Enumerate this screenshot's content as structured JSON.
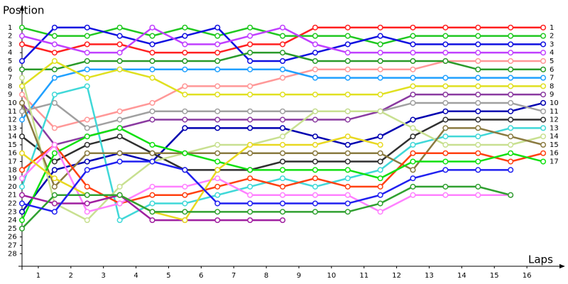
{
  "chart_data": {
    "type": "line",
    "y_label": "Position",
    "x_label": "Laps",
    "x": [
      0,
      1,
      2,
      3,
      4,
      5,
      6,
      7,
      8,
      9,
      10,
      11,
      12,
      13,
      14,
      15,
      16
    ],
    "xlim": [
      0,
      16.5
    ],
    "ylim": [
      29.5,
      0
    ],
    "xticks": [
      {
        "value": 0.5,
        "label": "1"
      },
      {
        "value": 1.5,
        "label": "2"
      },
      {
        "value": 2.5,
        "label": "3"
      },
      {
        "value": 3.5,
        "label": "4"
      },
      {
        "value": 4.5,
        "label": "5"
      },
      {
        "value": 5.5,
        "label": "6"
      },
      {
        "value": 6.5,
        "label": "7"
      },
      {
        "value": 7.5,
        "label": "8"
      },
      {
        "value": 8.5,
        "label": "9"
      },
      {
        "value": 9.5,
        "label": "10"
      },
      {
        "value": 10.5,
        "label": "11"
      },
      {
        "value": 11.5,
        "label": "12"
      },
      {
        "value": 12.5,
        "label": "13"
      },
      {
        "value": 13.5,
        "label": "14"
      },
      {
        "value": 14.5,
        "label": "15"
      },
      {
        "value": 15.5,
        "label": "16"
      }
    ],
    "yticks": [
      1,
      2,
      3,
      4,
      5,
      6,
      7,
      8,
      9,
      10,
      11,
      12,
      13,
      14,
      15,
      16,
      17,
      18,
      19,
      20,
      21,
      22,
      23,
      24,
      25,
      26,
      27,
      28
    ],
    "series": [
      {
        "color": "#ff2020",
        "values": [
          3,
          4,
          3,
          3,
          4,
          4,
          4,
          3,
          3,
          1,
          1,
          1,
          1,
          1,
          1,
          1,
          1
        ]
      },
      {
        "color": "#20c820",
        "values": [
          1,
          2,
          2,
          1,
          2,
          1,
          2,
          1,
          2,
          2,
          2,
          3,
          2,
          2,
          2,
          2,
          2
        ]
      },
      {
        "color": "#1010e0",
        "values": [
          5,
          1,
          1,
          2,
          3,
          2,
          1,
          5,
          5,
          4,
          3,
          2,
          3,
          3,
          3,
          3,
          3
        ]
      },
      {
        "color": "#c040ff",
        "values": [
          2,
          3,
          4,
          4,
          1,
          3,
          3,
          2,
          1,
          3,
          4,
          4,
          4,
          4,
          4,
          4,
          4
        ]
      },
      {
        "color": "#ff9898",
        "values": [
          9,
          13,
          12,
          11,
          10,
          8,
          8,
          8,
          7,
          6,
          6,
          6,
          6,
          5,
          5,
          5,
          5
        ]
      },
      {
        "color": "#2a9a2a",
        "values": [
          6,
          6,
          5,
          5,
          5,
          5,
          5,
          4,
          4,
          5,
          5,
          5,
          5,
          5,
          6,
          6,
          6
        ]
      },
      {
        "color": "#20a0ff",
        "values": [
          12,
          7,
          6,
          6,
          6,
          6,
          6,
          6,
          6,
          7,
          7,
          7,
          7,
          7,
          7,
          7,
          7
        ]
      },
      {
        "color": "#e0e020",
        "values": [
          8,
          5,
          7,
          6,
          7,
          9,
          9,
          9,
          9,
          9,
          9,
          9,
          8,
          8,
          8,
          8,
          8
        ]
      },
      {
        "color": "#8a3aa0",
        "values": [
          10,
          15,
          14,
          13,
          12,
          12,
          12,
          12,
          12,
          12,
          12,
          11,
          9,
          9,
          9,
          9,
          9
        ]
      },
      {
        "color": "#0000b0",
        "values": [
          23,
          18,
          17,
          16,
          17,
          13,
          13,
          13,
          13,
          14,
          15,
          14,
          12,
          11,
          11,
          11,
          10
        ]
      },
      {
        "color": "#a0a0a0",
        "values": [
          11,
          10,
          13,
          12,
          11,
          11,
          11,
          11,
          11,
          11,
          11,
          11,
          10,
          10,
          10,
          10,
          11
        ]
      },
      {
        "color": "#303030",
        "values": [
          14,
          17,
          15,
          14,
          16,
          18,
          18,
          18,
          17,
          17,
          17,
          17,
          14,
          12,
          12,
          12,
          12
        ]
      },
      {
        "color": "#40d8d8",
        "values": [
          20,
          9,
          8,
          24,
          22,
          22,
          21,
          20,
          19,
          20,
          19,
          18,
          15,
          14,
          14,
          13,
          13
        ]
      },
      {
        "color": "#c8e090",
        "values": [
          7,
          22,
          24,
          20,
          17,
          16,
          15,
          15,
          14,
          11,
          11,
          11,
          13,
          15,
          15,
          15,
          14
        ]
      },
      {
        "color": "#8a7a40",
        "values": [
          10,
          20,
          16,
          16,
          16,
          16,
          16,
          16,
          16,
          16,
          16,
          16,
          18,
          13,
          13,
          14,
          15
        ]
      },
      {
        "color": "#ff4010",
        "values": [
          18,
          15,
          20,
          22,
          21,
          21,
          20,
          19,
          20,
          19,
          20,
          20,
          16,
          16,
          16,
          17,
          16
        ]
      },
      {
        "color": "#10e010",
        "values": [
          24,
          16,
          14,
          13,
          15,
          16,
          17,
          18,
          18,
          18,
          18,
          19,
          17,
          17,
          17,
          16,
          17
        ]
      },
      {
        "color": "#ff80ff",
        "values": [
          19,
          15,
          23,
          22,
          20,
          20,
          19,
          21,
          21,
          21,
          21,
          23,
          21,
          21,
          21,
          21,
          null
        ]
      },
      {
        "color": "#a020a0",
        "values": [
          21,
          22,
          22,
          21,
          24,
          24,
          24,
          24,
          24,
          null,
          null,
          null,
          null,
          null,
          null,
          null,
          null
        ]
      },
      {
        "color": "#e8d820",
        "values": [
          16,
          19,
          21,
          21,
          23,
          24,
          18,
          15,
          15,
          15,
          14,
          15,
          null,
          null,
          null,
          null,
          null
        ]
      },
      {
        "color": "#30a030",
        "values": [
          25,
          21,
          21,
          21,
          23,
          23,
          23,
          23,
          23,
          23,
          23,
          22,
          20,
          20,
          20,
          21,
          null
        ]
      },
      {
        "color": "#2020f0",
        "values": [
          22,
          23,
          18,
          17,
          17,
          18,
          22,
          22,
          22,
          22,
          22,
          21,
          19,
          18,
          18,
          18,
          null
        ]
      }
    ]
  }
}
